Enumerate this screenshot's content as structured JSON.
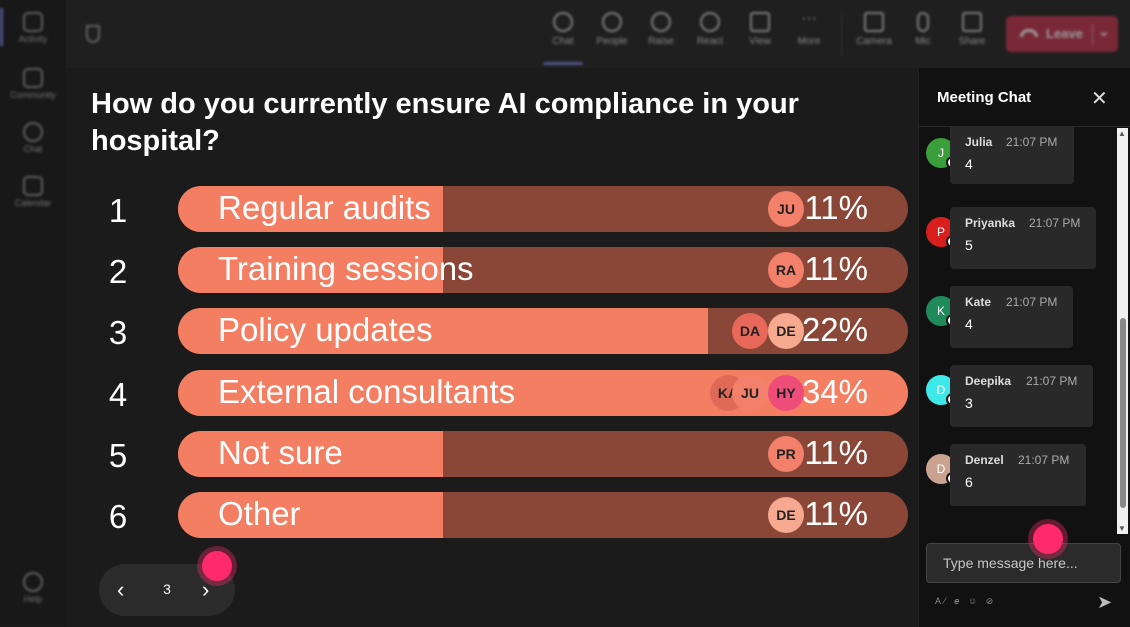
{
  "rail": {
    "items": [
      {
        "label": "Activity",
        "icon": "bell-icon"
      },
      {
        "label": "Community",
        "icon": "community-icon"
      },
      {
        "label": "Chat",
        "icon": "chat-icon"
      },
      {
        "label": "Calendar",
        "icon": "calendar-icon"
      },
      {
        "label": "Help",
        "icon": "help-icon"
      }
    ]
  },
  "toolbar": {
    "chat": "Chat",
    "people": "People",
    "raise": "Raise",
    "react": "React",
    "view": "View",
    "more": "More",
    "camera": "Camera",
    "mic": "Mic",
    "share": "Share",
    "leave": "Leave"
  },
  "poll": {
    "question": "How do you currently ensure AI compliance in your hospital?",
    "options": [
      {
        "num": "1",
        "label": "Regular audits",
        "percent": 11,
        "pct_text": "11%",
        "voters": [
          "JU"
        ]
      },
      {
        "num": "2",
        "label": "Training sessions",
        "percent": 11,
        "pct_text": "11%",
        "voters": [
          "RA"
        ]
      },
      {
        "num": "3",
        "label": "Policy updates",
        "percent": 22,
        "pct_text": "22%",
        "voters": [
          "DA",
          "DE"
        ]
      },
      {
        "num": "4",
        "label": "External consultants",
        "percent": 34,
        "pct_text": "34%",
        "voters": [
          "KA",
          "JU",
          "HY"
        ]
      },
      {
        "num": "5",
        "label": "Not sure",
        "percent": 11,
        "pct_text": "11%",
        "voters": [
          "PR"
        ]
      },
      {
        "num": "6",
        "label": "Other",
        "percent": 11,
        "pct_text": "11%",
        "voters": [
          "DE"
        ]
      }
    ],
    "page": "3"
  },
  "chat": {
    "title": "Meeting Chat",
    "placeholder": "Type message here...",
    "messages": [
      {
        "initial": "J",
        "name": "Julia",
        "time": "21:07 PM",
        "text": "4",
        "color": "#3a9e3a"
      },
      {
        "initial": "P",
        "name": "Priyanka",
        "time": "21:07 PM",
        "text": "5",
        "color": "#d91e1e"
      },
      {
        "initial": "K",
        "name": "Kate",
        "time": "21:07 PM",
        "text": "4",
        "color": "#1f8a5a"
      },
      {
        "initial": "D",
        "name": "Deepika",
        "time": "21:07 PM",
        "text": "3",
        "color": "#3ee8e8"
      },
      {
        "initial": "D",
        "name": "Denzel",
        "time": "21:07 PM",
        "text": "6",
        "color": "#c9a38f"
      }
    ]
  },
  "colors": {
    "bar_fill": "#f47e62",
    "bar_track": "#8a4636",
    "leave": "#c4314b",
    "accent": "#7b83eb"
  }
}
